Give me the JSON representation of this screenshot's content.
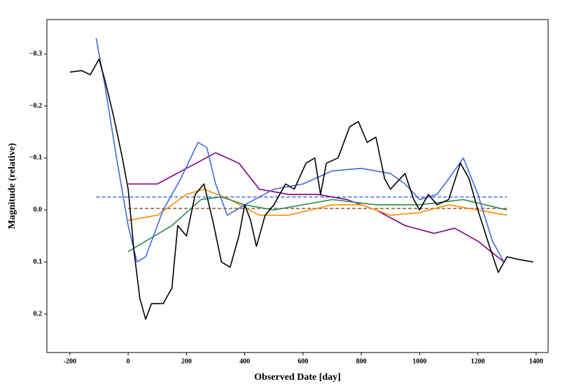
{
  "chart_data": {
    "type": "line",
    "xlabel": "Observed Date [day]",
    "ylabel": "Magnitude (relative)",
    "xlim": [
      -279,
      1441
    ],
    "ylim": [
      -0.366,
      0.274
    ],
    "yinvert": true,
    "xticks": [
      -200,
      0,
      200,
      400,
      600,
      800,
      1000,
      1200,
      1400
    ],
    "yticks": [
      {
        "value": -0.3,
        "label": "−0.3"
      },
      {
        "value": -0.2,
        "label": "−0.2"
      },
      {
        "value": -0.1,
        "label": "−0.1"
      },
      {
        "value": 0.0,
        "label": "0.0"
      },
      0.1,
      0.2
    ],
    "series": [
      {
        "color": "#4169e1",
        "dash": true,
        "x": [
          -110,
          1300
        ],
        "values": [
          -0.025,
          -0.025
        ]
      },
      {
        "color": "#8b5a2b",
        "dash": true,
        "x": [
          0,
          1300
        ],
        "values": [
          -0.003,
          -0.003
        ]
      },
      {
        "color": "#800080",
        "x": [
          0,
          100,
          200,
          300,
          380,
          450,
          550,
          650,
          750,
          850,
          950,
          1050,
          1120,
          1200,
          1290
        ],
        "values": [
          -0.05,
          -0.05,
          -0.08,
          -0.11,
          -0.09,
          -0.04,
          -0.03,
          -0.03,
          -0.02,
          0.0,
          0.03,
          0.045,
          0.035,
          0.06,
          0.1
        ]
      },
      {
        "color": "#ff8c00",
        "x": [
          0,
          100,
          200,
          260,
          350,
          450,
          550,
          700,
          800,
          900,
          1000,
          1100,
          1200,
          1300
        ],
        "values": [
          0.02,
          0.01,
          -0.03,
          -0.04,
          -0.02,
          0.01,
          0.01,
          -0.01,
          -0.01,
          0.01,
          0.005,
          -0.01,
          0.0,
          0.01
        ]
      },
      {
        "color": "#2e8b57",
        "x": [
          0,
          60,
          150,
          250,
          320,
          400,
          500,
          700,
          850,
          1000,
          1150,
          1300
        ],
        "values": [
          0.08,
          0.06,
          0.03,
          -0.02,
          -0.025,
          -0.01,
          0.0,
          -0.02,
          -0.01,
          -0.01,
          -0.02,
          0.0
        ]
      },
      {
        "color": "#4169e1",
        "x": [
          -110,
          -80,
          -40,
          0,
          30,
          60,
          120,
          180,
          240,
          270,
          300,
          340,
          400,
          500,
          600,
          700,
          800,
          900,
          950,
          1000,
          1060,
          1100,
          1150,
          1200,
          1250,
          1290
        ],
        "values": [
          -0.33,
          -0.24,
          -0.1,
          0.03,
          0.1,
          0.09,
          0.0,
          -0.06,
          -0.13,
          -0.12,
          -0.05,
          0.01,
          -0.01,
          -0.04,
          -0.05,
          -0.075,
          -0.08,
          -0.07,
          -0.05,
          -0.02,
          -0.03,
          -0.06,
          -0.1,
          -0.03,
          0.06,
          0.1
        ]
      },
      {
        "color": "#000000",
        "x": [
          -200,
          -160,
          -130,
          -100,
          -80,
          -50,
          -20,
          0,
          20,
          40,
          60,
          80,
          120,
          150,
          170,
          200,
          230,
          260,
          290,
          320,
          350,
          380,
          400,
          420,
          440,
          470,
          500,
          540,
          570,
          610,
          640,
          660,
          680,
          720,
          760,
          790,
          820,
          850,
          880,
          900,
          950,
          980,
          1000,
          1030,
          1060,
          1100,
          1140,
          1170,
          1200,
          1240,
          1270,
          1300,
          1340,
          1390
        ],
        "values": [
          -0.265,
          -0.268,
          -0.26,
          -0.29,
          -0.25,
          -0.18,
          -0.1,
          -0.04,
          0.08,
          0.17,
          0.21,
          0.18,
          0.18,
          0.15,
          0.03,
          0.05,
          -0.03,
          -0.05,
          0.02,
          0.1,
          0.11,
          0.05,
          -0.01,
          0.02,
          0.07,
          0.01,
          -0.01,
          -0.05,
          -0.04,
          -0.09,
          -0.1,
          -0.03,
          -0.09,
          -0.1,
          -0.16,
          -0.17,
          -0.13,
          -0.14,
          -0.06,
          -0.04,
          -0.07,
          -0.02,
          0.0,
          -0.03,
          -0.01,
          -0.02,
          -0.09,
          -0.06,
          0.0,
          0.07,
          0.12,
          0.09,
          0.095,
          0.1
        ]
      }
    ]
  }
}
